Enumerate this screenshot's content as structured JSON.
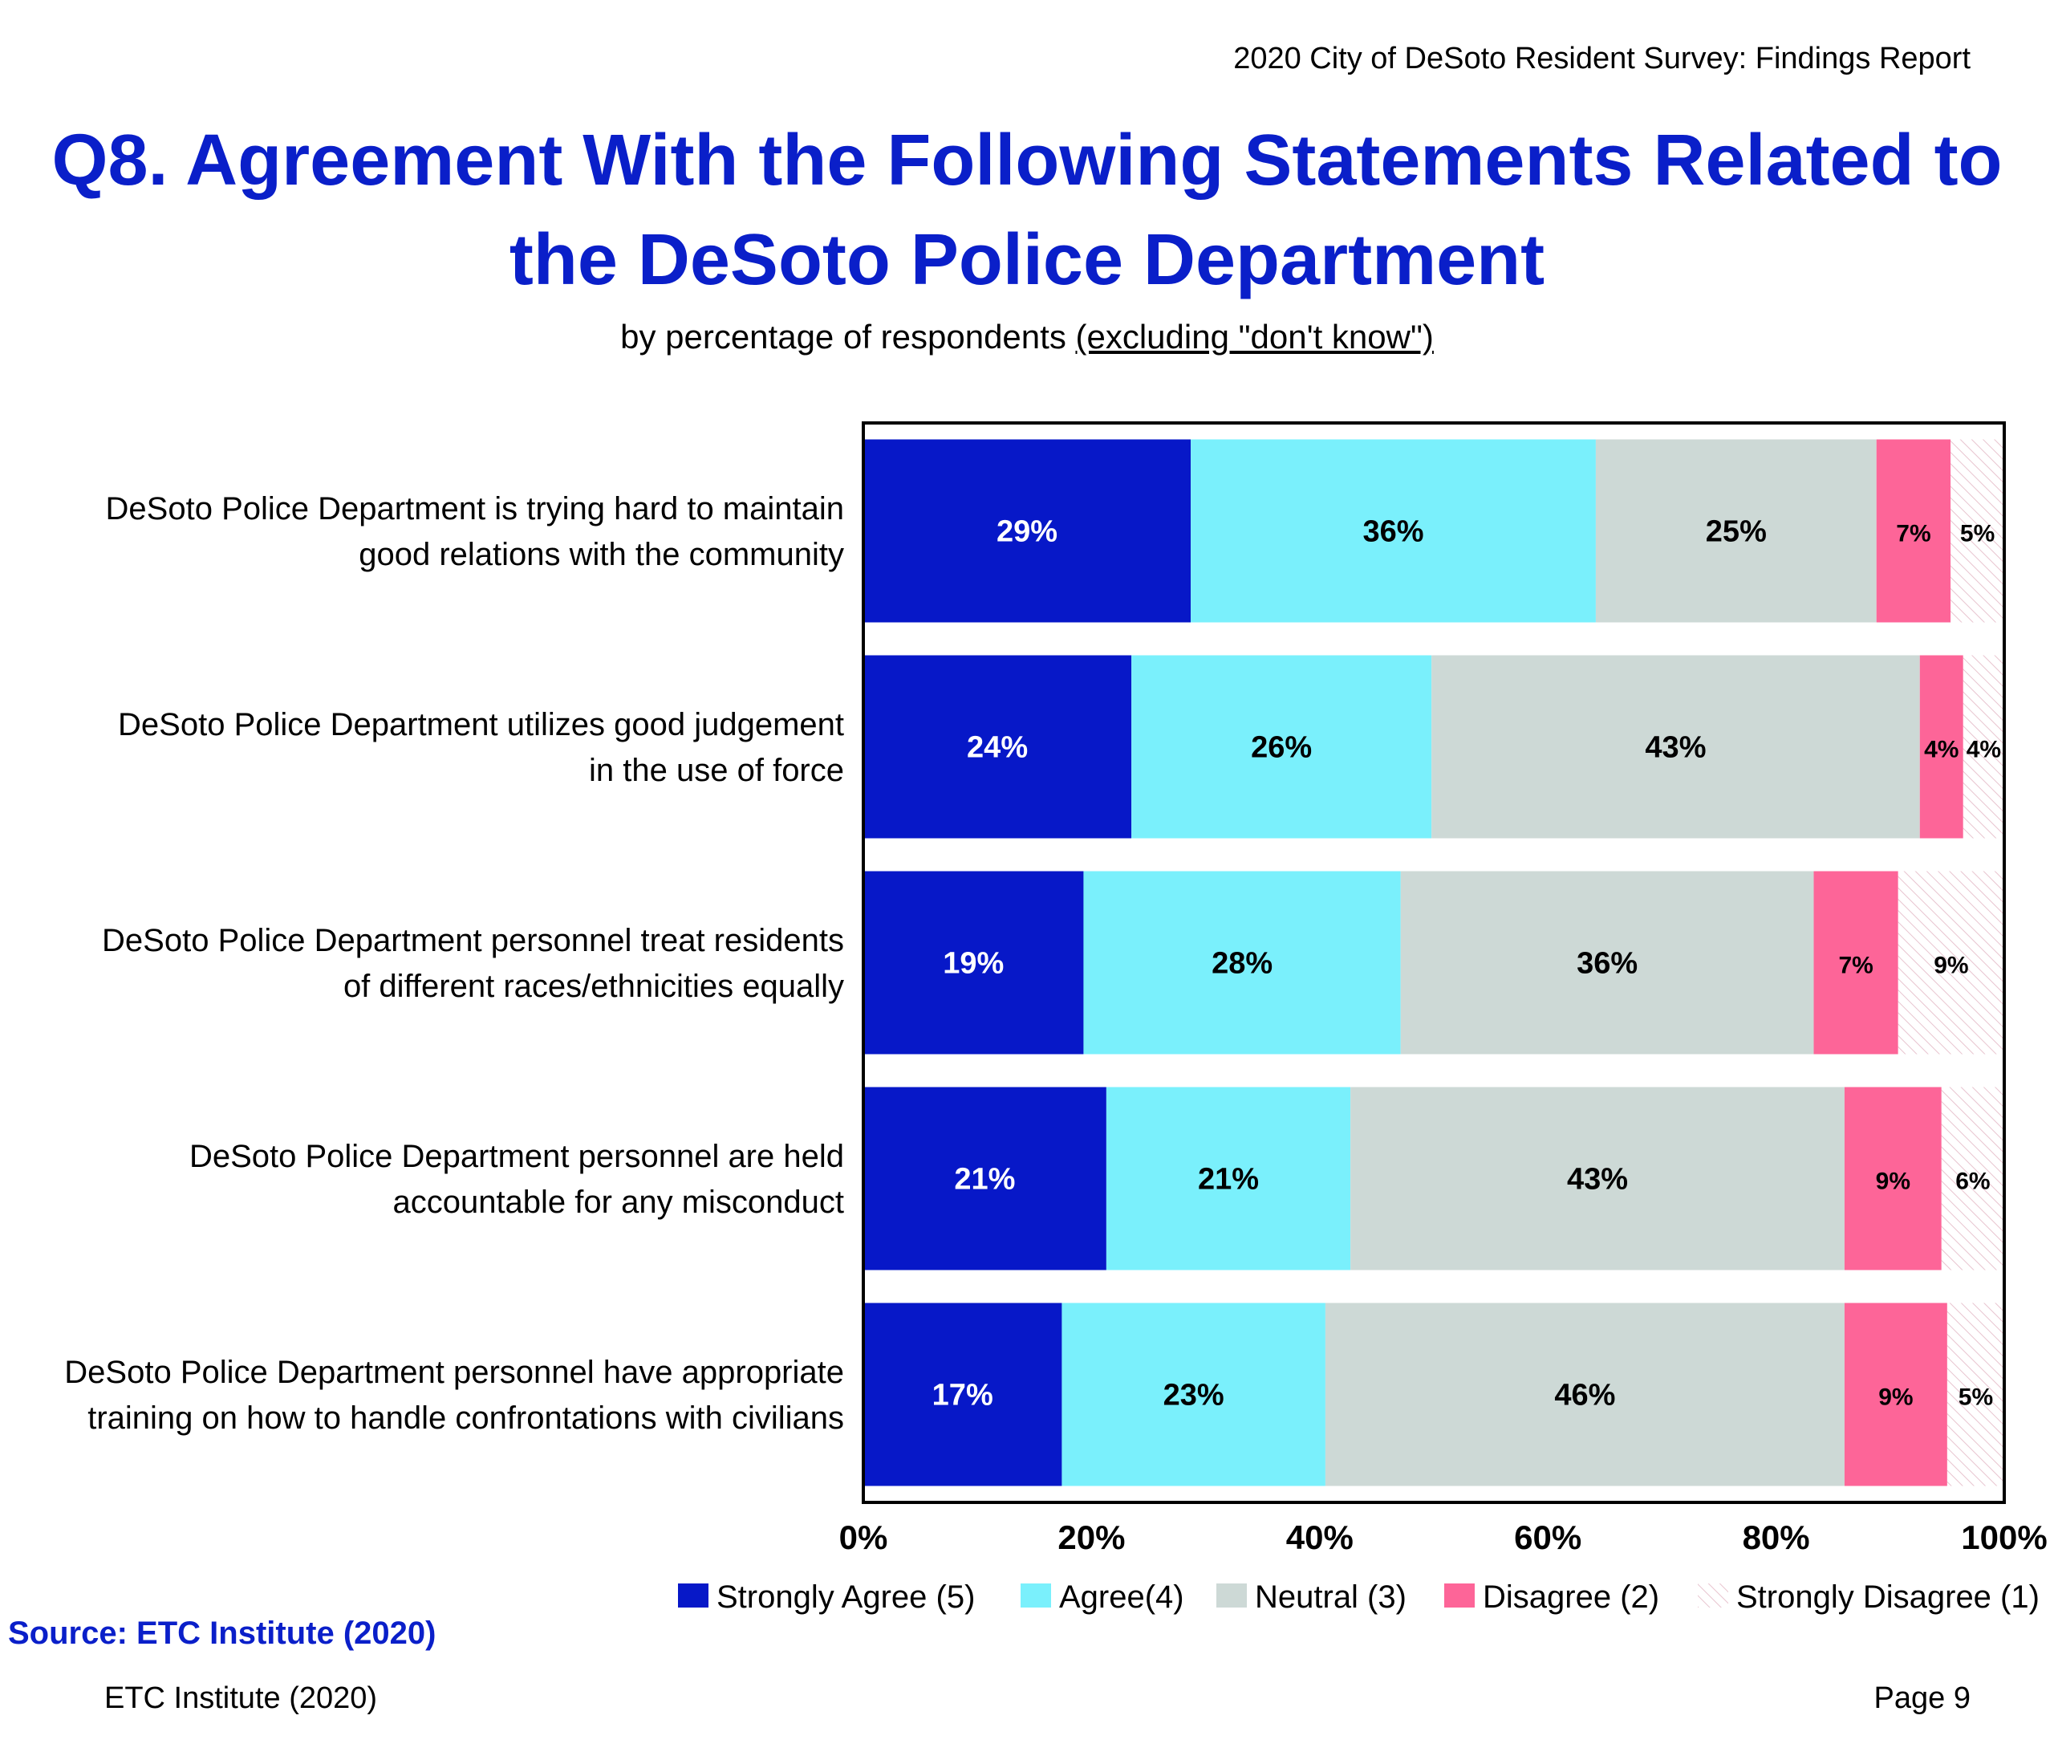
{
  "header": {
    "report_title": "2020 City of DeSoto Resident Survey:  Findings Report"
  },
  "footer": {
    "source_label": "Source:   ETC Institute (2020)",
    "left": "ETC Institute (2020)",
    "right": "Page 9"
  },
  "chart_data": {
    "type": "bar",
    "orientation": "horizontal",
    "stacked": true,
    "title_line1": "Q8. Agreement With the Following Statements Related to",
    "title_line2": "the DeSoto Police Department",
    "subtitle_prefix": "by percentage of respondents ",
    "subtitle_underlined": "(excluding \"don't know\")",
    "xlim": [
      0,
      100
    ],
    "x_ticks": [
      "0%",
      "20%",
      "40%",
      "60%",
      "80%",
      "100%"
    ],
    "legend_position": "bottom",
    "categories": [
      [
        "DeSoto Police Department is trying hard to maintain",
        "good relations with the community"
      ],
      [
        "DeSoto Police Department utilizes good judgement",
        "in the use of force"
      ],
      [
        "DeSoto Police Department personnel treat residents",
        "of different races/ethnicities equally"
      ],
      [
        "DeSoto Police Department personnel are held",
        "accountable for any misconduct"
      ],
      [
        "DeSoto Police Department personnel have appropriate",
        "training on how to handle confrontations with civilians"
      ]
    ],
    "series": [
      {
        "name": "Strongly Agree (5)",
        "color": "#0718c8",
        "label_color": "#ffffff",
        "pattern": false,
        "values": [
          28.7,
          23.5,
          19.3,
          21.3,
          17.4
        ],
        "labels": [
          "29%",
          "24%",
          "19%",
          "21%",
          "17%"
        ]
      },
      {
        "name": "Agree(4)",
        "color": "#7af0fc",
        "label_color": "#000000",
        "pattern": false,
        "values": [
          35.5,
          26.3,
          27.8,
          21.4,
          23.1
        ],
        "labels": [
          "36%",
          "26%",
          "28%",
          "21%",
          "23%"
        ]
      },
      {
        "name": "Neutral (3)",
        "color": "#cdd9d6",
        "label_color": "#000000",
        "pattern": false,
        "values": [
          24.6,
          42.8,
          36.2,
          43.3,
          45.5
        ],
        "labels": [
          "25%",
          "43%",
          "36%",
          "43%",
          "46%"
        ]
      },
      {
        "name": "Disagree (2)",
        "color": "#fd6598",
        "label_color": "#000000",
        "pattern": false,
        "values": [
          6.5,
          3.8,
          7.4,
          8.5,
          9.0
        ],
        "labels": [
          "7%",
          "4%",
          "7%",
          "9%",
          "9%"
        ]
      },
      {
        "name": "Strongly Disagree (1)",
        "color": "#ffffff",
        "label_color": "#000000",
        "pattern": true,
        "values": [
          4.7,
          3.6,
          9.3,
          5.5,
          5.0
        ],
        "labels": [
          "5%",
          "4%",
          "9%",
          "6%",
          "5%"
        ]
      }
    ]
  }
}
